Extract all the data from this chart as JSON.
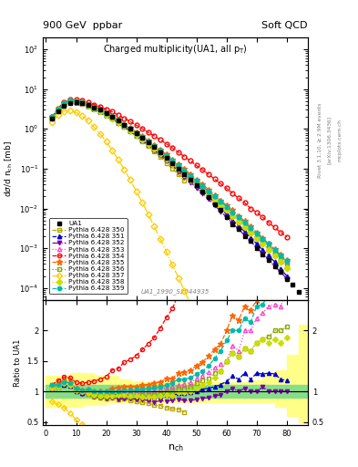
{
  "title_top": "900 GeV  ppbar",
  "title_right": "Soft QCD",
  "plot_title": "Charged multiplicity(UA1, all p_{T})",
  "ylabel_top": "dσ/d n_{ch} [mb]",
  "ylabel_bottom": "Ratio to UA1",
  "xlabel": "n_{ch}",
  "rivet_label": "Rivet 3.1.10, ≥ 2.9M events",
  "arxiv_label": "[arXiv:1306.3436]",
  "mcplots_label": "mcplots.cern.ch",
  "dataset_label": "UA1_1990_S2044935",
  "ua1_nch": [
    2,
    4,
    6,
    8,
    10,
    12,
    14,
    16,
    18,
    20,
    22,
    24,
    26,
    28,
    30,
    32,
    34,
    36,
    38,
    40,
    42,
    44,
    46,
    48,
    50,
    52,
    54,
    56,
    58,
    60,
    62,
    64,
    66,
    68,
    70,
    72,
    74,
    76,
    78,
    80,
    82,
    84
  ],
  "ua1_vals": [
    1.8,
    2.8,
    3.8,
    4.5,
    4.8,
    4.5,
    4.0,
    3.5,
    3.0,
    2.5,
    2.0,
    1.6,
    1.25,
    1.0,
    0.78,
    0.6,
    0.46,
    0.35,
    0.26,
    0.19,
    0.14,
    0.1,
    0.074,
    0.054,
    0.038,
    0.027,
    0.019,
    0.013,
    0.009,
    0.006,
    0.004,
    0.003,
    0.002,
    0.0015,
    0.001,
    0.0007,
    0.0005,
    0.00035,
    0.00025,
    0.00017,
    0.00012,
    8e-05
  ],
  "series": [
    {
      "label": "Pythia 6.428 350",
      "color": "#b8a800",
      "linestyle": "--",
      "marker": "s",
      "markerfacecolor": "none",
      "nch": [
        2,
        4,
        6,
        8,
        10,
        12,
        14,
        16,
        18,
        20,
        22,
        24,
        26,
        28,
        30,
        32,
        34,
        36,
        38,
        40,
        42,
        44,
        46
      ],
      "vals": [
        2.0,
        3.2,
        4.5,
        5.2,
        5.0,
        4.5,
        3.8,
        3.2,
        2.7,
        2.2,
        1.8,
        1.4,
        1.1,
        0.85,
        0.65,
        0.49,
        0.37,
        0.27,
        0.2,
        0.14,
        0.1,
        0.071,
        0.049
      ]
    },
    {
      "label": "Pythia 6.428 351",
      "color": "#0000cc",
      "linestyle": "--",
      "marker": "^",
      "markerfacecolor": "#0000cc",
      "nch": [
        2,
        4,
        6,
        8,
        10,
        12,
        14,
        16,
        18,
        20,
        22,
        24,
        26,
        28,
        30,
        32,
        34,
        36,
        38,
        40,
        42,
        44,
        46,
        48,
        50,
        52,
        54,
        56,
        58,
        60,
        62,
        64,
        66,
        68,
        70,
        72,
        74,
        76,
        78,
        80
      ],
      "vals": [
        1.9,
        3.0,
        4.2,
        4.9,
        4.8,
        4.4,
        3.9,
        3.3,
        2.8,
        2.3,
        1.9,
        1.5,
        1.2,
        0.92,
        0.72,
        0.55,
        0.42,
        0.32,
        0.24,
        0.18,
        0.13,
        0.097,
        0.072,
        0.053,
        0.038,
        0.028,
        0.02,
        0.014,
        0.01,
        0.007,
        0.005,
        0.0036,
        0.0026,
        0.0018,
        0.0013,
        0.0009,
        0.00065,
        0.00045,
        0.0003,
        0.0002
      ]
    },
    {
      "label": "Pythia 6.428 352",
      "color": "#7700aa",
      "linestyle": "-.",
      "marker": "v",
      "markerfacecolor": "#7700aa",
      "nch": [
        2,
        4,
        6,
        8,
        10,
        12,
        14,
        16,
        18,
        20,
        22,
        24,
        26,
        28,
        30,
        32,
        34,
        36,
        38,
        40,
        42,
        44,
        46,
        48,
        50,
        52,
        54,
        56,
        58,
        60,
        62,
        64,
        66,
        68,
        70,
        72,
        74,
        76,
        78,
        80
      ],
      "vals": [
        1.9,
        3.0,
        4.2,
        4.9,
        4.8,
        4.3,
        3.8,
        3.2,
        2.7,
        2.2,
        1.8,
        1.4,
        1.1,
        0.88,
        0.68,
        0.52,
        0.39,
        0.29,
        0.22,
        0.16,
        0.12,
        0.087,
        0.063,
        0.046,
        0.033,
        0.024,
        0.017,
        0.012,
        0.0085,
        0.006,
        0.0042,
        0.003,
        0.0021,
        0.0015,
        0.001,
        0.00075,
        0.0005,
        0.00035,
        0.00025,
        0.00017
      ]
    },
    {
      "label": "Pythia 6.428 353",
      "color": "#ff44cc",
      "linestyle": ":",
      "marker": "^",
      "markerfacecolor": "none",
      "nch": [
        2,
        4,
        6,
        8,
        10,
        12,
        14,
        16,
        18,
        20,
        22,
        24,
        26,
        28,
        30,
        32,
        34,
        36,
        38,
        40,
        42,
        44,
        46,
        48,
        50,
        52,
        54,
        56,
        58,
        60,
        62,
        64,
        66,
        68,
        70,
        72,
        74,
        76,
        78,
        80
      ],
      "vals": [
        1.9,
        3.1,
        4.4,
        5.1,
        5.0,
        4.5,
        4.0,
        3.4,
        2.9,
        2.4,
        2.0,
        1.6,
        1.25,
        1.0,
        0.78,
        0.6,
        0.46,
        0.35,
        0.27,
        0.2,
        0.15,
        0.11,
        0.083,
        0.062,
        0.046,
        0.034,
        0.025,
        0.018,
        0.013,
        0.009,
        0.007,
        0.005,
        0.004,
        0.003,
        0.0022,
        0.0016,
        0.0012,
        0.00085,
        0.0006,
        0.00045
      ]
    },
    {
      "label": "Pythia 6.428 354",
      "color": "#ff0000",
      "linestyle": "--",
      "marker": "o",
      "markerfacecolor": "none",
      "nch": [
        2,
        4,
        6,
        8,
        10,
        12,
        14,
        16,
        18,
        20,
        22,
        24,
        26,
        28,
        30,
        32,
        34,
        36,
        38,
        40,
        42,
        44,
        46,
        48,
        50,
        52,
        54,
        56,
        58,
        60,
        62,
        64,
        66,
        68,
        70,
        72,
        74,
        76,
        78,
        80
      ],
      "vals": [
        2.0,
        3.3,
        4.7,
        5.5,
        5.5,
        5.1,
        4.6,
        4.1,
        3.6,
        3.1,
        2.7,
        2.2,
        1.85,
        1.52,
        1.24,
        1.01,
        0.82,
        0.66,
        0.53,
        0.42,
        0.33,
        0.26,
        0.2,
        0.157,
        0.12,
        0.093,
        0.072,
        0.055,
        0.042,
        0.032,
        0.024,
        0.018,
        0.014,
        0.01,
        0.008,
        0.006,
        0.0044,
        0.0033,
        0.0025,
        0.0019
      ]
    },
    {
      "label": "Pythia 6.428 355",
      "color": "#ff6600",
      "linestyle": "--",
      "marker": "*",
      "markerfacecolor": "#ff6600",
      "nch": [
        2,
        4,
        6,
        8,
        10,
        12,
        14,
        16,
        18,
        20,
        22,
        24,
        26,
        28,
        30,
        32,
        34,
        36,
        38,
        40,
        42,
        44,
        46,
        48,
        50,
        52,
        54,
        56,
        58,
        60,
        62,
        64,
        66,
        68,
        70,
        72,
        74,
        76,
        78,
        80
      ],
      "vals": [
        1.9,
        3.1,
        4.4,
        5.1,
        5.0,
        4.6,
        4.1,
        3.5,
        3.0,
        2.5,
        2.1,
        1.7,
        1.35,
        1.07,
        0.84,
        0.66,
        0.51,
        0.4,
        0.3,
        0.23,
        0.17,
        0.13,
        0.097,
        0.073,
        0.054,
        0.04,
        0.03,
        0.022,
        0.016,
        0.012,
        0.009,
        0.0065,
        0.0048,
        0.0035,
        0.0025,
        0.0018,
        0.0013,
        0.00095,
        0.00068,
        0.0005
      ]
    },
    {
      "label": "Pythia 6.428 356",
      "color": "#88aa00",
      "linestyle": ":",
      "marker": "s",
      "markerfacecolor": "none",
      "nch": [
        2,
        4,
        6,
        8,
        10,
        12,
        14,
        16,
        18,
        20,
        22,
        24,
        26,
        28,
        30,
        32,
        34,
        36,
        38,
        40,
        42,
        44,
        46,
        48,
        50,
        52,
        54,
        56,
        58,
        60,
        62,
        64,
        66,
        68,
        70,
        72,
        74,
        76,
        78,
        80
      ],
      "vals": [
        1.9,
        3.0,
        4.3,
        5.0,
        4.9,
        4.5,
        3.9,
        3.3,
        2.8,
        2.3,
        1.9,
        1.5,
        1.18,
        0.93,
        0.73,
        0.56,
        0.43,
        0.33,
        0.25,
        0.19,
        0.14,
        0.105,
        0.078,
        0.058,
        0.043,
        0.032,
        0.023,
        0.017,
        0.012,
        0.009,
        0.0065,
        0.0047,
        0.0034,
        0.0025,
        0.0018,
        0.0013,
        0.00095,
        0.0007,
        0.0005,
        0.00035
      ]
    },
    {
      "label": "Pythia 6.428 357",
      "color": "#ffcc00",
      "linestyle": "-.",
      "marker": "D",
      "markerfacecolor": "none",
      "nch": [
        2,
        4,
        6,
        8,
        10,
        12,
        14,
        16,
        18,
        20,
        22,
        24,
        26,
        28,
        30,
        32,
        34,
        36,
        38,
        40,
        42,
        44,
        46,
        48,
        50,
        52,
        54,
        56,
        58,
        60,
        62,
        64,
        66,
        68,
        70,
        72,
        74,
        76,
        78,
        80,
        82,
        84
      ],
      "vals": [
        1.5,
        2.2,
        2.8,
        2.9,
        2.6,
        2.1,
        1.6,
        1.1,
        0.75,
        0.48,
        0.29,
        0.17,
        0.095,
        0.052,
        0.027,
        0.014,
        0.007,
        0.0035,
        0.0017,
        0.0008,
        0.00038,
        0.00018,
        8.5e-05,
        4e-05,
        1.9e-05,
        9e-06,
        4.3e-06,
        2e-06,
        9.5e-07,
        4.5e-07,
        2.1e-07,
        1e-07,
        4.7e-08,
        2.2e-08,
        1e-08,
        4.8e-09,
        2.2e-09,
        1e-09,
        4.8e-10,
        2.2e-10,
        1e-10,
        4.8e-11
      ]
    },
    {
      "label": "Pythia 6.428 358",
      "color": "#ccdd00",
      "linestyle": ":",
      "marker": "D",
      "markerfacecolor": "#ccdd00",
      "nch": [
        2,
        4,
        6,
        8,
        10,
        12,
        14,
        16,
        18,
        20,
        22,
        24,
        26,
        28,
        30,
        32,
        34,
        36,
        38,
        40,
        42,
        44,
        46,
        48,
        50,
        52,
        54,
        56,
        58,
        60,
        62,
        64,
        66,
        68,
        70,
        72,
        74,
        76,
        78,
        80
      ],
      "vals": [
        1.9,
        3.0,
        4.3,
        5.0,
        4.9,
        4.5,
        3.9,
        3.3,
        2.8,
        2.3,
        1.85,
        1.5,
        1.18,
        0.92,
        0.72,
        0.55,
        0.42,
        0.32,
        0.24,
        0.18,
        0.13,
        0.098,
        0.073,
        0.054,
        0.04,
        0.03,
        0.022,
        0.016,
        0.012,
        0.009,
        0.0065,
        0.0047,
        0.0034,
        0.0025,
        0.0018,
        0.0013,
        0.0009,
        0.00065,
        0.00045,
        0.00032
      ]
    },
    {
      "label": "Pythia 6.428 359",
      "color": "#00bbaa",
      "linestyle": "--",
      "marker": "o",
      "markerfacecolor": "#00bbaa",
      "nch": [
        2,
        4,
        6,
        8,
        10,
        12,
        14,
        16,
        18,
        20,
        22,
        24,
        26,
        28,
        30,
        32,
        34,
        36,
        38,
        40,
        42,
        44,
        46,
        48,
        50,
        52,
        54,
        56,
        58,
        60,
        62,
        64,
        66,
        68,
        70,
        72,
        74,
        76,
        78,
        80
      ],
      "vals": [
        2.0,
        3.1,
        4.4,
        5.1,
        5.0,
        4.6,
        4.1,
        3.5,
        3.0,
        2.5,
        2.0,
        1.6,
        1.28,
        1.01,
        0.8,
        0.62,
        0.48,
        0.37,
        0.28,
        0.21,
        0.16,
        0.12,
        0.089,
        0.066,
        0.049,
        0.036,
        0.027,
        0.02,
        0.015,
        0.011,
        0.008,
        0.006,
        0.0044,
        0.0032,
        0.0024,
        0.0017,
        0.0013,
        0.0009,
        0.00065,
        0.00047
      ]
    }
  ],
  "green_band_x": [
    0,
    4,
    8,
    12,
    16,
    20,
    24,
    28,
    32,
    36,
    40,
    44,
    48,
    52,
    56,
    60,
    64,
    68,
    72,
    76,
    80,
    84,
    88
  ],
  "green_band_lo": [
    0.9,
    0.9,
    0.9,
    0.9,
    0.9,
    0.9,
    0.9,
    0.9,
    0.9,
    0.9,
    0.9,
    0.9,
    0.9,
    0.9,
    0.9,
    0.9,
    0.9,
    0.9,
    0.9,
    0.9,
    0.9,
    0.9,
    0.9
  ],
  "green_band_hi": [
    1.1,
    1.1,
    1.1,
    1.1,
    1.1,
    1.1,
    1.1,
    1.1,
    1.1,
    1.1,
    1.1,
    1.1,
    1.1,
    1.1,
    1.1,
    1.1,
    1.1,
    1.1,
    1.1,
    1.1,
    1.1,
    1.1,
    1.1
  ],
  "yellow_band_x": [
    0,
    4,
    8,
    12,
    16,
    20,
    24,
    28,
    32,
    36,
    40,
    44,
    48,
    52,
    56,
    60,
    64,
    68,
    72,
    76,
    80,
    84,
    88
  ],
  "yellow_band_lo": [
    0.75,
    0.75,
    0.75,
    0.78,
    0.8,
    0.82,
    0.82,
    0.82,
    0.82,
    0.82,
    0.82,
    0.82,
    0.82,
    0.82,
    0.82,
    0.82,
    0.82,
    0.82,
    0.82,
    0.75,
    0.6,
    0.5,
    0.5
  ],
  "yellow_band_hi": [
    1.25,
    1.25,
    1.3,
    1.3,
    1.25,
    1.25,
    1.2,
    1.16,
    1.15,
    1.15,
    1.15,
    1.15,
    1.15,
    1.15,
    1.15,
    1.15,
    1.15,
    1.18,
    1.25,
    1.35,
    1.6,
    2.1,
    2.2
  ]
}
